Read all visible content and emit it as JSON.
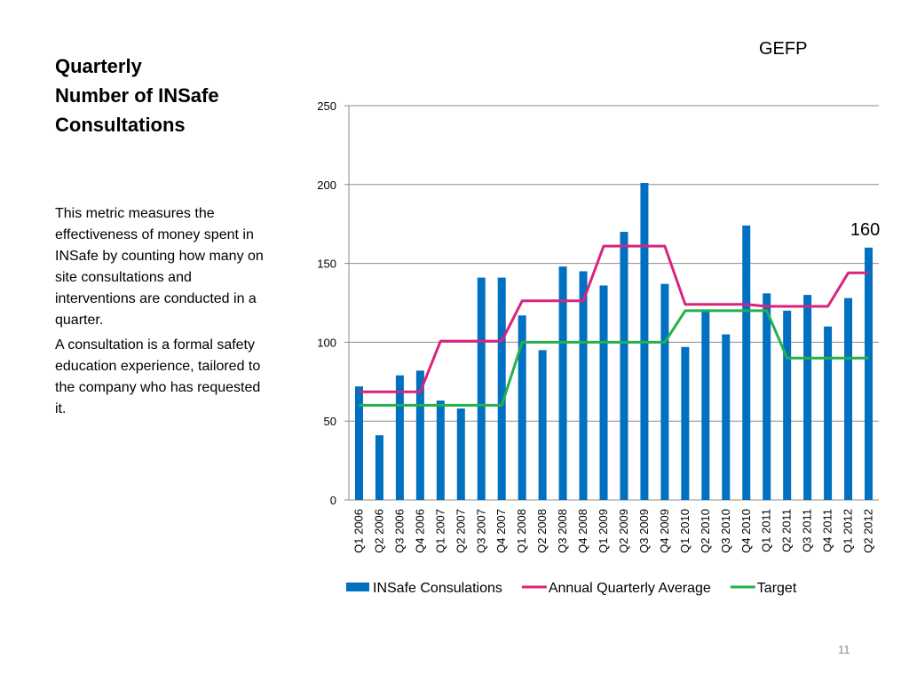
{
  "slide": {
    "header_tag": "GEFP",
    "title_lines": [
      "Quarterly",
      "Number of INSafe",
      "Consultations"
    ],
    "description": [
      "This  metric measures  the effectiveness of money spent in INSafe by counting how many on site consultations and interventions are conducted in a quarter.",
      "A consultation is a formal safety education experience, tailored to the company who has requested it."
    ],
    "page_number": "11"
  },
  "chart_data": {
    "type": "bar",
    "title": "",
    "xlabel": "",
    "ylabel": "",
    "ylim": [
      0,
      250
    ],
    "yticks": [
      0,
      50,
      100,
      150,
      200,
      250
    ],
    "grid": true,
    "legend_position": "bottom",
    "categories": [
      "Q1 2006",
      "Q2 2006",
      "Q3 2006",
      "Q4 2006",
      "Q1 2007",
      "Q2 2007",
      "Q3 2007",
      "Q4 2007",
      "Q1 2008",
      "Q2 2008",
      "Q3 2008",
      "Q4 2008",
      "Q1 2009",
      "Q2 2009",
      "Q3 2009",
      "Q4 2009",
      "Q1 2010",
      "Q2 2010",
      "Q3 2010",
      "Q4 2010",
      "Q1 2011",
      "Q2 2011",
      "Q3 2011",
      "Q4 2011",
      "Q1 2012",
      "Q2 2012"
    ],
    "series": [
      {
        "name": "INSafe Consulations",
        "type": "bar",
        "color": "#0070c0",
        "values": [
          72,
          41,
          79,
          82,
          63,
          58,
          141,
          141,
          117,
          95,
          148,
          145,
          136,
          170,
          201,
          137,
          97,
          120,
          105,
          174,
          131,
          120,
          130,
          110,
          128,
          160
        ]
      },
      {
        "name": "Annual Quarterly Average",
        "type": "line",
        "color": "#d9237f",
        "values": [
          68.5,
          68.5,
          68.5,
          68.5,
          100.75,
          100.75,
          100.75,
          100.75,
          126.25,
          126.25,
          126.25,
          126.25,
          161,
          161,
          161,
          161,
          124,
          124,
          124,
          124,
          122.75,
          122.75,
          122.75,
          122.75,
          144,
          144
        ]
      },
      {
        "name": "Target",
        "type": "line",
        "color": "#22b14c",
        "values": [
          60,
          60,
          60,
          60,
          60,
          60,
          60,
          60,
          100,
          100,
          100,
          100,
          100,
          100,
          100,
          100,
          120,
          120,
          120,
          120,
          120,
          90,
          90,
          90,
          90,
          90
        ]
      }
    ],
    "annotations": [
      {
        "text": "160",
        "category": "Q2 2012"
      }
    ]
  }
}
